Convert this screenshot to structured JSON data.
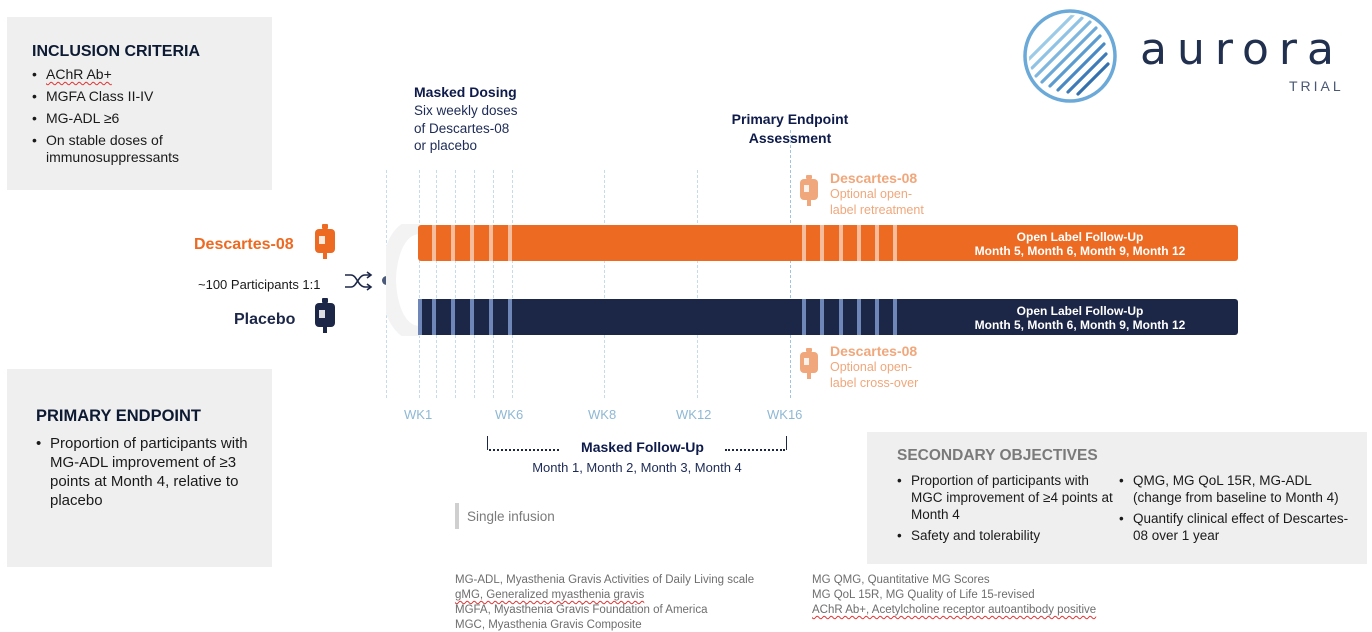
{
  "inclusion": {
    "title": "INCLUSION CRITERIA",
    "items": [
      "AChR Ab+",
      "MGFA Class II-IV",
      "MG-ADL ≥6",
      "On stable doses of immunosuppressants"
    ]
  },
  "primary": {
    "title": "PRIMARY ENDPOINT",
    "items": [
      "Proportion of participants with MG-ADL improvement of ≥3 points at Month 4, relative to placebo"
    ]
  },
  "secondary": {
    "title": "SECONDARY OBJECTIVES",
    "left_items": [
      "Proportion of participants with MGC improvement of ≥4 points at Month 4",
      "Safety and tolerability"
    ],
    "right_items": [
      "QMG, MG QoL 15R, MG-ADL (change from baseline to Month 4)",
      "Quantify clinical effect of Descartes-08 over 1 year"
    ]
  },
  "logo": {
    "name": "aurora",
    "sub": "TRIAL"
  },
  "masked_dosing": {
    "title": "Masked Dosing",
    "line1": "Six weekly doses",
    "line2": "of Descartes-08",
    "line3": "or placebo"
  },
  "primary_assessment": {
    "line1": "Primary Endpoint",
    "line2": "Assessment"
  },
  "arms": {
    "descartes": "Descartes-08",
    "placebo": "Placebo",
    "participants": "~100 Participants 1:1"
  },
  "retreatment": {
    "title": "Descartes-08",
    "line1": "Optional open-",
    "line2": "label retreatment"
  },
  "crossover": {
    "title": "Descartes-08",
    "line1": "Optional open-",
    "line2": "label cross-over"
  },
  "followup_orange": {
    "title": "Open Label Follow-Up",
    "months": "Month 5, Month 6, Month 9, Month 12"
  },
  "followup_navy": {
    "title": "Open Label Follow-Up",
    "months": "Month 5, Month 6, Month 9, Month 12"
  },
  "weeks": [
    "WK1",
    "WK6",
    "WK8",
    "WK12",
    "WK16"
  ],
  "masked_followup": {
    "title": "Masked Follow-Up",
    "months": "Month 1, Month 2, Month 3, Month 4"
  },
  "legend": {
    "single_infusion": "Single infusion"
  },
  "footnotes": {
    "left": [
      "MG-ADL, Myasthenia Gravis Activities of Daily Living scale",
      "gMG, Generalized myasthenia gravis",
      "MGFA, Myasthenia Gravis Foundation of America",
      "MGC, Myasthenia Gravis Composite"
    ],
    "right": [
      "MG QMG, Quantitative MG Scores",
      "MG QoL 15R, MG Quality of Life 15-revised",
      "AChR Ab+, Acetylcholine receptor autoantibody positive"
    ]
  },
  "colors": {
    "orange": "#ec6a22",
    "navy": "#1c2748",
    "light_orange": "#f0a77b",
    "grey_box": "#efefef",
    "light_blue": "#8fb8d4"
  }
}
